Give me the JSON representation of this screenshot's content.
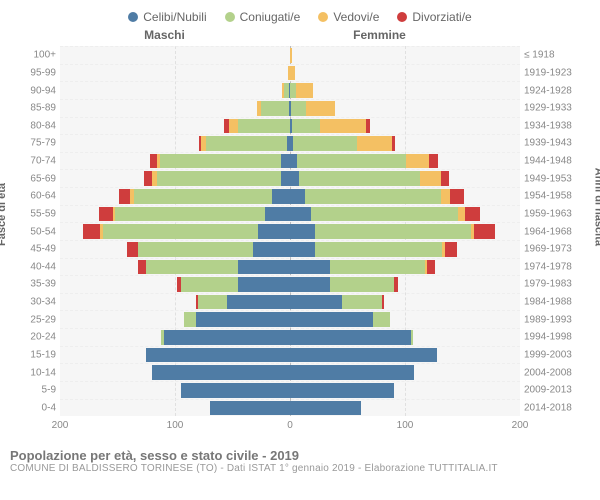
{
  "legend": {
    "items": [
      {
        "label": "Celibi/Nubili",
        "color": "#4f7ca5"
      },
      {
        "label": "Coniugati/e",
        "color": "#b3d18b"
      },
      {
        "label": "Vedovi/e",
        "color": "#f4c063"
      },
      {
        "label": "Divorziati/e",
        "color": "#cf3d3d"
      }
    ]
  },
  "gender": {
    "male": "Maschi",
    "female": "Femmine"
  },
  "axes": {
    "left_label": "Fasce di età",
    "right_label": "Anni di nascita",
    "xmax": 200,
    "xticks": [
      200,
      100,
      0,
      100,
      200
    ]
  },
  "rows": [
    {
      "age": "100+",
      "year": "≤ 1918",
      "m": [
        0,
        0,
        0,
        0
      ],
      "f": [
        0,
        0,
        2,
        0
      ]
    },
    {
      "age": "95-99",
      "year": "1919-1923",
      "m": [
        0,
        0,
        2,
        0
      ],
      "f": [
        0,
        0,
        4,
        0
      ]
    },
    {
      "age": "90-94",
      "year": "1924-1928",
      "m": [
        1,
        4,
        2,
        0
      ],
      "f": [
        0,
        5,
        15,
        0
      ]
    },
    {
      "age": "85-89",
      "year": "1929-1933",
      "m": [
        1,
        24,
        4,
        0
      ],
      "f": [
        1,
        13,
        25,
        0
      ]
    },
    {
      "age": "80-84",
      "year": "1934-1938",
      "m": [
        0,
        45,
        8,
        4
      ],
      "f": [
        2,
        24,
        40,
        4
      ]
    },
    {
      "age": "75-79",
      "year": "1939-1943",
      "m": [
        3,
        70,
        4,
        2
      ],
      "f": [
        3,
        55,
        31,
        2
      ]
    },
    {
      "age": "70-74",
      "year": "1944-1948",
      "m": [
        8,
        105,
        3,
        6
      ],
      "f": [
        6,
        95,
        20,
        8
      ]
    },
    {
      "age": "65-69",
      "year": "1949-1953",
      "m": [
        8,
        108,
        4,
        7
      ],
      "f": [
        8,
        105,
        18,
        7
      ]
    },
    {
      "age": "60-64",
      "year": "1954-1958",
      "m": [
        16,
        120,
        3,
        10
      ],
      "f": [
        13,
        118,
        8,
        12
      ]
    },
    {
      "age": "55-59",
      "year": "1959-1963",
      "m": [
        22,
        130,
        2,
        12
      ],
      "f": [
        18,
        128,
        6,
        13
      ]
    },
    {
      "age": "50-54",
      "year": "1964-1968",
      "m": [
        28,
        135,
        2,
        15
      ],
      "f": [
        22,
        135,
        3,
        18
      ]
    },
    {
      "age": "45-49",
      "year": "1969-1973",
      "m": [
        32,
        100,
        0,
        10
      ],
      "f": [
        22,
        110,
        3,
        10
      ]
    },
    {
      "age": "40-44",
      "year": "1974-1978",
      "m": [
        45,
        80,
        0,
        7
      ],
      "f": [
        35,
        82,
        2,
        7
      ]
    },
    {
      "age": "35-39",
      "year": "1979-1983",
      "m": [
        45,
        50,
        0,
        3
      ],
      "f": [
        35,
        55,
        0,
        4
      ]
    },
    {
      "age": "30-34",
      "year": "1984-1988",
      "m": [
        55,
        25,
        0,
        2
      ],
      "f": [
        45,
        35,
        0,
        2
      ]
    },
    {
      "age": "25-29",
      "year": "1989-1993",
      "m": [
        82,
        10,
        0,
        0
      ],
      "f": [
        72,
        15,
        0,
        0
      ]
    },
    {
      "age": "20-24",
      "year": "1994-1998",
      "m": [
        110,
        2,
        0,
        0
      ],
      "f": [
        105,
        2,
        0,
        0
      ]
    },
    {
      "age": "15-19",
      "year": "1999-2003",
      "m": [
        125,
        0,
        0,
        0
      ],
      "f": [
        128,
        0,
        0,
        0
      ]
    },
    {
      "age": "10-14",
      "year": "2004-2008",
      "m": [
        120,
        0,
        0,
        0
      ],
      "f": [
        108,
        0,
        0,
        0
      ]
    },
    {
      "age": "5-9",
      "year": "2009-2013",
      "m": [
        95,
        0,
        0,
        0
      ],
      "f": [
        90,
        0,
        0,
        0
      ]
    },
    {
      "age": "0-4",
      "year": "2014-2018",
      "m": [
        70,
        0,
        0,
        0
      ],
      "f": [
        62,
        0,
        0,
        0
      ]
    }
  ],
  "footer": {
    "title": "Popolazione per età, sesso e stato civile - 2019",
    "subtitle": "COMUNE DI BALDISSERO TORINESE (TO) - Dati ISTAT 1° gennaio 2019 - Elaborazione TUTTITALIA.IT"
  }
}
